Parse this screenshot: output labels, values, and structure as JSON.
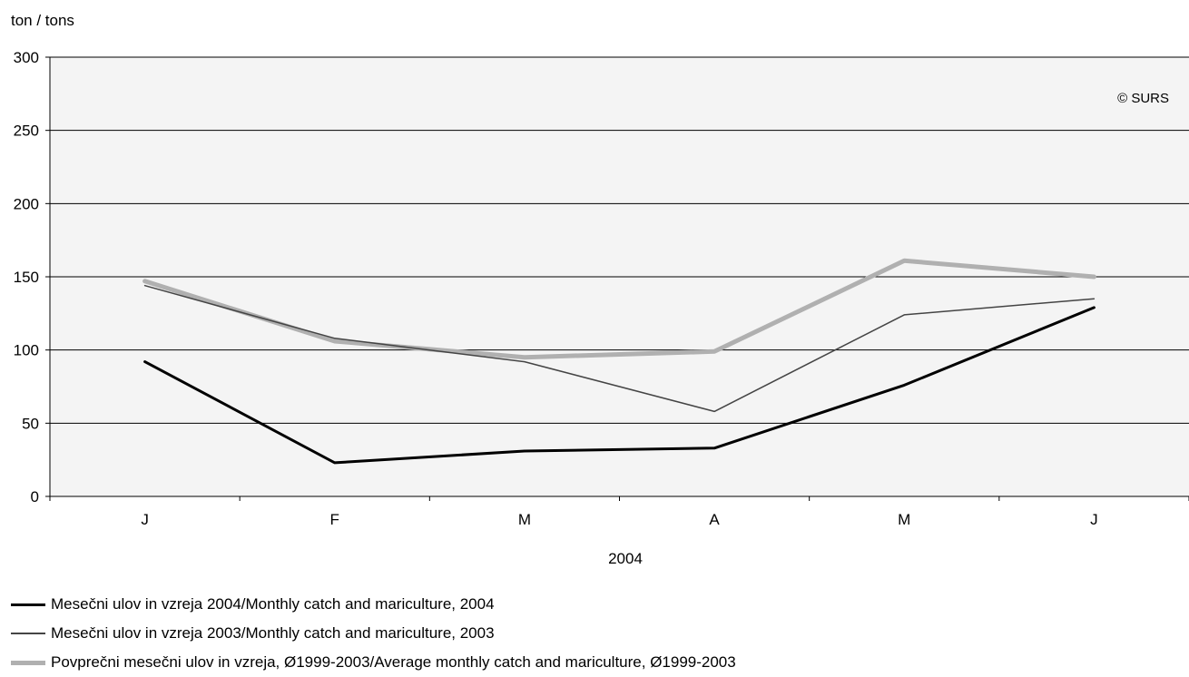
{
  "chart_data": {
    "type": "line",
    "title": "",
    "ylabel": "ton / tons",
    "xlabel": "2004",
    "watermark": "© SURS",
    "categories": [
      "J",
      "F",
      "M",
      "A",
      "M",
      "J"
    ],
    "ylim": [
      0,
      300
    ],
    "yticks": [
      0,
      50,
      100,
      150,
      200,
      250,
      300
    ],
    "ytick_labels": [
      "0",
      "50",
      "100",
      "150",
      "200",
      "250",
      "300"
    ],
    "grid": true,
    "plot_background": "#f4f4f4",
    "series": [
      {
        "name": "Mesečni ulov in vzreja 2004/Monthly catch and mariculture, 2004",
        "values": [
          92,
          23,
          31,
          33,
          76,
          129
        ],
        "color": "#000000",
        "style": "thick-black"
      },
      {
        "name": "Mesečni ulov in vzreja 2003/Monthly catch and mariculture, 2003",
        "values": [
          144,
          108,
          92,
          58,
          124,
          135
        ],
        "color": "#444444",
        "style": "thin-dark-gray"
      },
      {
        "name": "Povprečni mesečni ulov in vzreja, Ø1999-2003/Average monthly catch and mariculture, Ø1999-2003",
        "values": [
          147,
          106,
          95,
          99,
          161,
          150
        ],
        "color": "#b0b0b0",
        "style": "thick-light-gray"
      }
    ]
  }
}
